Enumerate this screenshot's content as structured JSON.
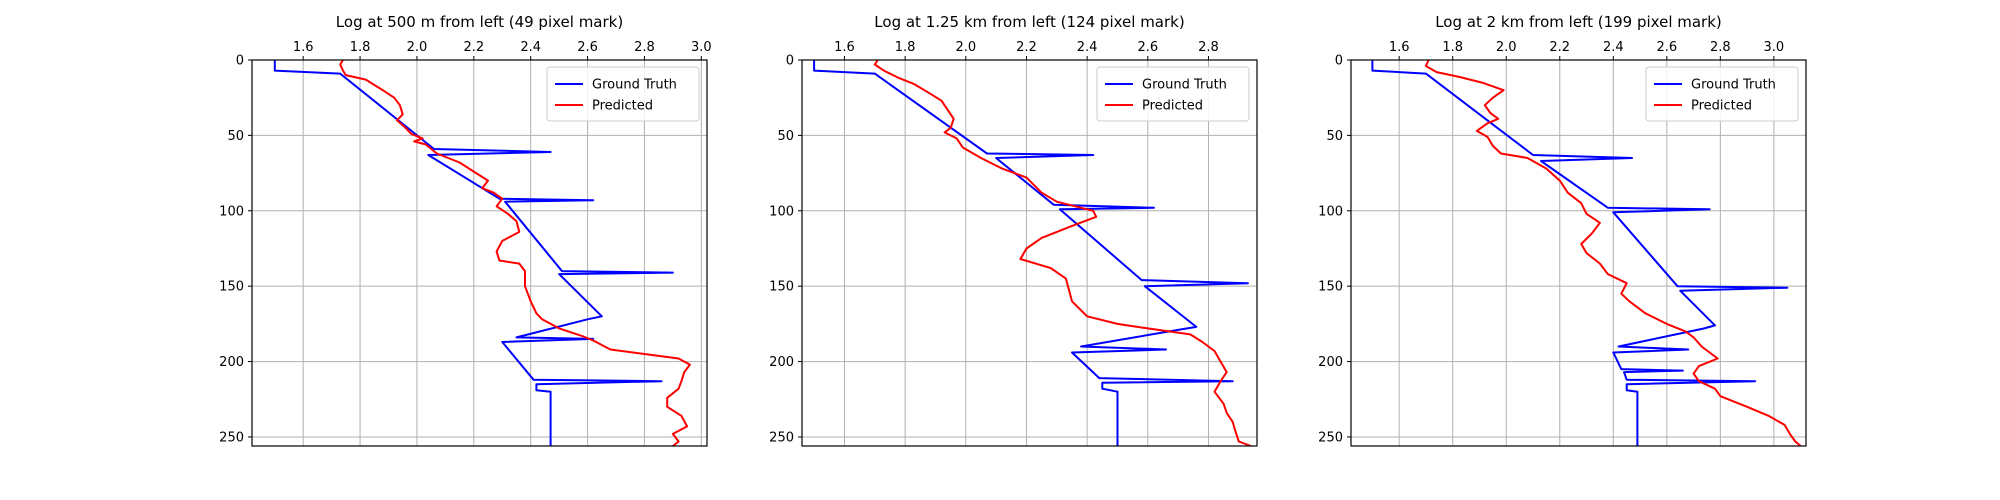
{
  "colors": {
    "ground_truth": "#0000ff",
    "predicted": "#ff0000",
    "grid": "#b0b0b0"
  },
  "chart_data": [
    {
      "type": "line",
      "title": "Log at 500 m from left (49 pixel mark)",
      "x_ticks": [
        "1.6",
        "1.8",
        "2.0",
        "2.2",
        "2.4",
        "2.6",
        "2.8",
        "3.0"
      ],
      "y_ticks": [
        "0",
        "50",
        "100",
        "150",
        "200",
        "250"
      ],
      "xlim": [
        1.42,
        3.02
      ],
      "ylim": [
        256,
        0
      ],
      "grid": true,
      "legend_position": "top-right",
      "series": [
        {
          "name": "Ground Truth",
          "color": "#0000ff",
          "points": [
            [
              1.5,
              0
            ],
            [
              1.5,
              7
            ],
            [
              1.73,
              9
            ],
            [
              2.06,
              59
            ],
            [
              2.47,
              61
            ],
            [
              2.04,
              63
            ],
            [
              2.29,
              92
            ],
            [
              2.62,
              93
            ],
            [
              2.31,
              94
            ],
            [
              2.51,
              140
            ],
            [
              2.9,
              141
            ],
            [
              2.5,
              142
            ],
            [
              2.65,
              170
            ],
            [
              2.6,
              172
            ],
            [
              2.35,
              184
            ],
            [
              2.62,
              185
            ],
            [
              2.3,
              187
            ],
            [
              2.41,
              212
            ],
            [
              2.86,
              213
            ],
            [
              2.42,
              215
            ],
            [
              2.42,
              219
            ],
            [
              2.47,
              220
            ],
            [
              2.47,
              256
            ]
          ]
        },
        {
          "name": "Predicted",
          "color": "#ff0000",
          "points": [
            [
              1.74,
              0
            ],
            [
              1.73,
              3
            ],
            [
              1.74,
              7
            ],
            [
              1.75,
              10
            ],
            [
              1.82,
              13
            ],
            [
              1.88,
              20
            ],
            [
              1.92,
              25
            ],
            [
              1.94,
              30
            ],
            [
              1.95,
              36
            ],
            [
              1.93,
              40
            ],
            [
              1.96,
              45
            ],
            [
              1.98,
              49
            ],
            [
              2.02,
              52
            ],
            [
              1.99,
              54
            ],
            [
              2.03,
              56
            ],
            [
              2.07,
              62
            ],
            [
              2.15,
              68
            ],
            [
              2.2,
              74
            ],
            [
              2.25,
              80
            ],
            [
              2.23,
              85
            ],
            [
              2.27,
              88
            ],
            [
              2.3,
              92
            ],
            [
              2.28,
              97
            ],
            [
              2.32,
              102
            ],
            [
              2.35,
              107
            ],
            [
              2.36,
              114
            ],
            [
              2.3,
              120
            ],
            [
              2.28,
              127
            ],
            [
              2.29,
              133
            ],
            [
              2.36,
              135
            ],
            [
              2.38,
              140
            ],
            [
              2.38,
              150
            ],
            [
              2.4,
              160
            ],
            [
              2.42,
              168
            ],
            [
              2.44,
              172
            ],
            [
              2.5,
              178
            ],
            [
              2.58,
              183
            ],
            [
              2.62,
              186
            ],
            [
              2.68,
              192
            ],
            [
              2.8,
              195
            ],
            [
              2.92,
              198
            ],
            [
              2.96,
              202
            ],
            [
              2.94,
              207
            ],
            [
              2.93,
              213
            ],
            [
              2.92,
              218
            ],
            [
              2.88,
              224
            ],
            [
              2.88,
              230
            ],
            [
              2.93,
              236
            ],
            [
              2.95,
              243
            ],
            [
              2.9,
              248
            ],
            [
              2.92,
              253
            ],
            [
              2.9,
              256
            ]
          ]
        }
      ]
    },
    {
      "type": "line",
      "title": "Log at 1.25 km from left (124 pixel mark)",
      "x_ticks": [
        "1.6",
        "1.8",
        "2.0",
        "2.2",
        "2.4",
        "2.6",
        "2.8"
      ],
      "y_ticks": [
        "0",
        "50",
        "100",
        "150",
        "200",
        "250"
      ],
      "xlim": [
        1.46,
        2.96
      ],
      "ylim": [
        256,
        0
      ],
      "grid": true,
      "legend_position": "top-right",
      "series": [
        {
          "name": "Ground Truth",
          "color": "#0000ff",
          "points": [
            [
              1.5,
              0
            ],
            [
              1.5,
              7
            ],
            [
              1.7,
              9
            ],
            [
              2.07,
              62
            ],
            [
              2.42,
              63
            ],
            [
              2.1,
              65
            ],
            [
              2.29,
              96
            ],
            [
              2.62,
              98
            ],
            [
              2.31,
              99
            ],
            [
              2.58,
              146
            ],
            [
              2.93,
              148
            ],
            [
              2.59,
              150
            ],
            [
              2.76,
              177
            ],
            [
              2.7,
              179
            ],
            [
              2.38,
              190
            ],
            [
              2.66,
              192
            ],
            [
              2.35,
              194
            ],
            [
              2.44,
              211
            ],
            [
              2.88,
              213
            ],
            [
              2.45,
              214
            ],
            [
              2.45,
              218
            ],
            [
              2.5,
              220
            ],
            [
              2.5,
              256
            ]
          ]
        },
        {
          "name": "Predicted",
          "color": "#ff0000",
          "points": [
            [
              1.71,
              0
            ],
            [
              1.7,
              3
            ],
            [
              1.73,
              7
            ],
            [
              1.78,
              12
            ],
            [
              1.83,
              16
            ],
            [
              1.88,
              22
            ],
            [
              1.92,
              27
            ],
            [
              1.94,
              33
            ],
            [
              1.96,
              39
            ],
            [
              1.95,
              45
            ],
            [
              1.93,
              48
            ],
            [
              1.97,
              52
            ],
            [
              1.99,
              58
            ],
            [
              2.05,
              65
            ],
            [
              2.12,
              72
            ],
            [
              2.2,
              78
            ],
            [
              2.22,
              82
            ],
            [
              2.25,
              88
            ],
            [
              2.3,
              94
            ],
            [
              2.42,
              100
            ],
            [
              2.43,
              104
            ],
            [
              2.35,
              110
            ],
            [
              2.25,
              118
            ],
            [
              2.2,
              125
            ],
            [
              2.18,
              132
            ],
            [
              2.28,
              138
            ],
            [
              2.33,
              145
            ],
            [
              2.35,
              160
            ],
            [
              2.4,
              170
            ],
            [
              2.5,
              175
            ],
            [
              2.6,
              178
            ],
            [
              2.74,
              182
            ],
            [
              2.78,
              187
            ],
            [
              2.82,
              193
            ],
            [
              2.84,
              200
            ],
            [
              2.86,
              207
            ],
            [
              2.84,
              213
            ],
            [
              2.82,
              220
            ],
            [
              2.85,
              228
            ],
            [
              2.86,
              234
            ],
            [
              2.88,
              240
            ],
            [
              2.89,
              247
            ],
            [
              2.9,
              253
            ],
            [
              2.94,
              256
            ]
          ]
        }
      ]
    },
    {
      "type": "line",
      "title": "Log at 2 km from left (199 pixel mark)",
      "x_ticks": [
        "1.6",
        "1.8",
        "2.0",
        "2.2",
        "2.4",
        "2.6",
        "2.8",
        "3.0"
      ],
      "y_ticks": [
        "0",
        "50",
        "100",
        "150",
        "200",
        "250"
      ],
      "xlim": [
        1.42,
        3.12
      ],
      "ylim": [
        256,
        0
      ],
      "grid": true,
      "legend_position": "top-right",
      "series": [
        {
          "name": "Ground Truth",
          "color": "#0000ff",
          "points": [
            [
              1.5,
              0
            ],
            [
              1.5,
              7
            ],
            [
              1.7,
              9
            ],
            [
              2.1,
              63
            ],
            [
              2.47,
              65
            ],
            [
              2.13,
              67
            ],
            [
              2.38,
              98
            ],
            [
              2.76,
              99
            ],
            [
              2.4,
              101
            ],
            [
              2.64,
              150
            ],
            [
              3.05,
              151
            ],
            [
              2.65,
              153
            ],
            [
              2.78,
              176
            ],
            [
              2.74,
              178
            ],
            [
              2.42,
              190
            ],
            [
              2.68,
              192
            ],
            [
              2.4,
              194
            ],
            [
              2.43,
              205
            ],
            [
              2.66,
              206
            ],
            [
              2.44,
              207
            ],
            [
              2.45,
              212
            ],
            [
              2.93,
              213
            ],
            [
              2.45,
              215
            ],
            [
              2.45,
              219
            ],
            [
              2.49,
              220
            ],
            [
              2.49,
              256
            ]
          ]
        },
        {
          "name": "Predicted",
          "color": "#ff0000",
          "points": [
            [
              1.71,
              0
            ],
            [
              1.7,
              4
            ],
            [
              1.74,
              8
            ],
            [
              1.82,
              11
            ],
            [
              1.91,
              15
            ],
            [
              1.99,
              20
            ],
            [
              1.95,
              25
            ],
            [
              1.92,
              30
            ],
            [
              1.94,
              35
            ],
            [
              1.97,
              39
            ],
            [
              1.93,
              42
            ],
            [
              1.89,
              47
            ],
            [
              1.93,
              51
            ],
            [
              1.95,
              57
            ],
            [
              1.98,
              62
            ],
            [
              2.08,
              65
            ],
            [
              2.15,
              72
            ],
            [
              2.2,
              80
            ],
            [
              2.23,
              88
            ],
            [
              2.28,
              95
            ],
            [
              2.3,
              102
            ],
            [
              2.35,
              108
            ],
            [
              2.32,
              115
            ],
            [
              2.28,
              122
            ],
            [
              2.3,
              128
            ],
            [
              2.35,
              135
            ],
            [
              2.38,
              142
            ],
            [
              2.45,
              148
            ],
            [
              2.43,
              155
            ],
            [
              2.46,
              160
            ],
            [
              2.52,
              168
            ],
            [
              2.6,
              175
            ],
            [
              2.67,
              180
            ],
            [
              2.7,
              184
            ],
            [
              2.73,
              190
            ],
            [
              2.76,
              194
            ],
            [
              2.79,
              198
            ],
            [
              2.72,
              203
            ],
            [
              2.7,
              208
            ],
            [
              2.72,
              213
            ],
            [
              2.78,
              218
            ],
            [
              2.8,
              223
            ],
            [
              2.9,
              230
            ],
            [
              2.98,
              236
            ],
            [
              3.04,
              242
            ],
            [
              3.06,
              248
            ],
            [
              3.08,
              253
            ],
            [
              3.1,
              256
            ]
          ]
        }
      ]
    }
  ]
}
